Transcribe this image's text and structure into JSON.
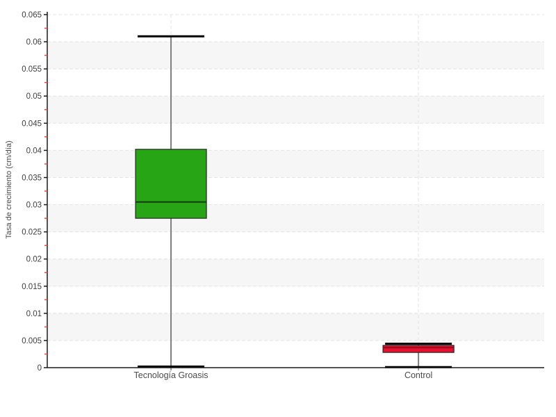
{
  "chart_data": {
    "type": "boxplot",
    "title": "",
    "xlabel": "",
    "ylabel": "Tasa de crecimiento (cm/día)",
    "ylim": [
      0,
      0.065
    ],
    "ytick_step": 0.005,
    "ytick_minor_step": 0.0025,
    "ytick_labels": [
      "0",
      "0.005",
      "0.01",
      "0.015",
      "0.02",
      "0.025",
      "0.03",
      "0.035",
      "0.04",
      "0.045",
      "0.05",
      "0.055",
      "0.06",
      "0.065"
    ],
    "categories": [
      "Tecnología Groasis",
      "Control"
    ],
    "series": [
      {
        "name": "Tecnología Groasis",
        "key": "tecnologia-groasis",
        "fill": "#28a514",
        "median_color": "#123a0c",
        "whisker_low": 0.0002,
        "q1": 0.0275,
        "median": 0.0305,
        "q3": 0.0402,
        "whisker_high": 0.061
      },
      {
        "name": "Control",
        "key": "control",
        "fill": "#e8102e",
        "median_color": "#8f0c1c",
        "whisker_low": 0.0001,
        "q1": 0.0028,
        "median": 0.0037,
        "q3": 0.0041,
        "whisker_high": 0.0044
      }
    ],
    "grid": {
      "horizontal_gridlines": "dashed",
      "vertical_gridlines_at_categories": "dashed",
      "alternating_bands": true
    },
    "legend_position": "none",
    "colors": {
      "background": "#ffffff",
      "band": "#f6f6f6",
      "gridline": "#e4e4e4",
      "axis": "#1a1a1a",
      "major_tick": "#1a1a1a",
      "minor_tick": "#f04438",
      "tick_label": "#3d3d3d",
      "whisker_line": "#7f7f7f",
      "whisker_cap": "#000000",
      "box_border": "#262626"
    }
  }
}
